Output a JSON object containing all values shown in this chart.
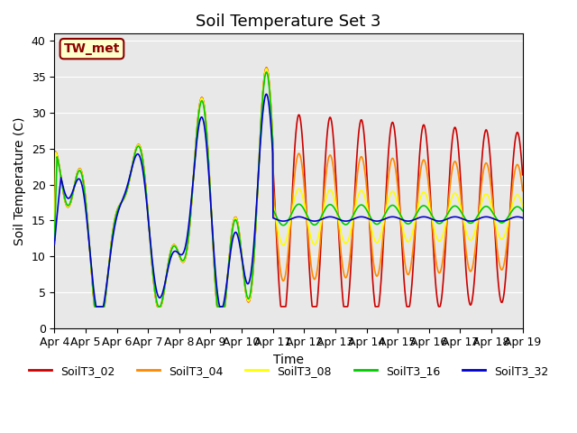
{
  "title": "Soil Temperature Set 3",
  "xlabel": "Time",
  "ylabel": "Soil Temperature (C)",
  "ylim": [
    0,
    41
  ],
  "yticks": [
    0,
    5,
    10,
    15,
    20,
    25,
    30,
    35,
    40
  ],
  "xtick_labels": [
    "Apr 4",
    "Apr 5",
    "Apr 6",
    "Apr 7",
    "Apr 8",
    "Apr 9",
    "Apr 10",
    "Apr 11",
    "Apr 12",
    "Apr 13",
    "Apr 14",
    "Apr 15",
    "Apr 16",
    "Apr 17",
    "Apr 18",
    "Apr 19"
  ],
  "legend_label": "TW_met",
  "series_colors": {
    "SoilT3_02": "#cc0000",
    "SoilT3_04": "#ff8800",
    "SoilT3_08": "#ffff00",
    "SoilT3_16": "#00cc00",
    "SoilT3_32": "#0000cc"
  },
  "legend_order": [
    "SoilT3_02",
    "SoilT3_04",
    "SoilT3_08",
    "SoilT3_16",
    "SoilT3_32"
  ],
  "bg_color": "#e8e8e8",
  "fig_bg": "#ffffff",
  "title_fontsize": 13,
  "label_fontsize": 10,
  "tick_fontsize": 9
}
